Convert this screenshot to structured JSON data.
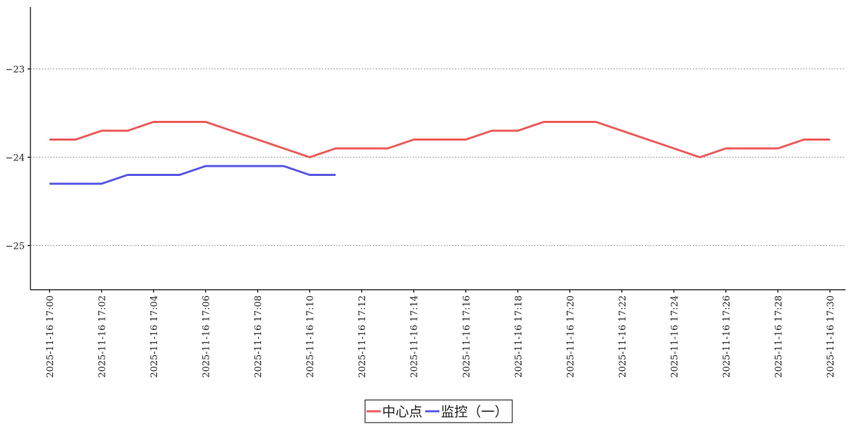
{
  "chart_data": {
    "type": "line",
    "categories": [
      "2025-11-16 17:00",
      null,
      "2025-11-16 17:02",
      null,
      "2025-11-16 17:04",
      null,
      "2025-11-16 17:06",
      null,
      "2025-11-16 17:08",
      null,
      "2025-11-16 17:10",
      null,
      "2025-11-16 17:12",
      null,
      "2025-11-16 17:14",
      null,
      "2025-11-16 17:16",
      null,
      "2025-11-16 17:18",
      null,
      "2025-11-16 17:20",
      null,
      "2025-11-16 17:22",
      null,
      "2025-11-16 17:24",
      null,
      "2025-11-16 17:26",
      null,
      "2025-11-16 17:28",
      null,
      "2025-11-16 17:30"
    ],
    "series": [
      {
        "name": "中心点",
        "color": "#ee5a5a",
        "values": [
          -23.8,
          -23.8,
          -23.7,
          -23.7,
          -23.6,
          -23.6,
          -23.6,
          -23.7,
          -23.8,
          -23.9,
          -24.0,
          -23.9,
          -23.9,
          -23.9,
          -23.8,
          -23.8,
          -23.8,
          -23.7,
          -23.7,
          -23.6,
          -23.6,
          -23.6,
          -23.7,
          -23.8,
          -23.9,
          -24.0,
          -23.9,
          -23.9,
          -23.9,
          -23.8,
          -23.8
        ]
      },
      {
        "name": "监控（一）",
        "color": "#5757e6",
        "values": [
          -24.3,
          -24.3,
          -24.3,
          -24.2,
          -24.2,
          -24.2,
          -24.1,
          -24.1,
          -24.1,
          -24.1,
          -24.2,
          -24.2,
          null,
          null,
          null,
          null,
          null,
          null,
          null,
          null,
          null,
          null,
          null,
          null,
          null,
          null,
          null,
          null,
          null,
          null,
          null
        ]
      }
    ],
    "ylim": [
      -25.5,
      -22.3
    ],
    "yticks": [
      {
        "value": -25,
        "label": "−25"
      },
      {
        "value": -24,
        "label": "−24"
      },
      {
        "value": -23,
        "label": "−23"
      }
    ],
    "grid": true,
    "legend": "bottom"
  }
}
